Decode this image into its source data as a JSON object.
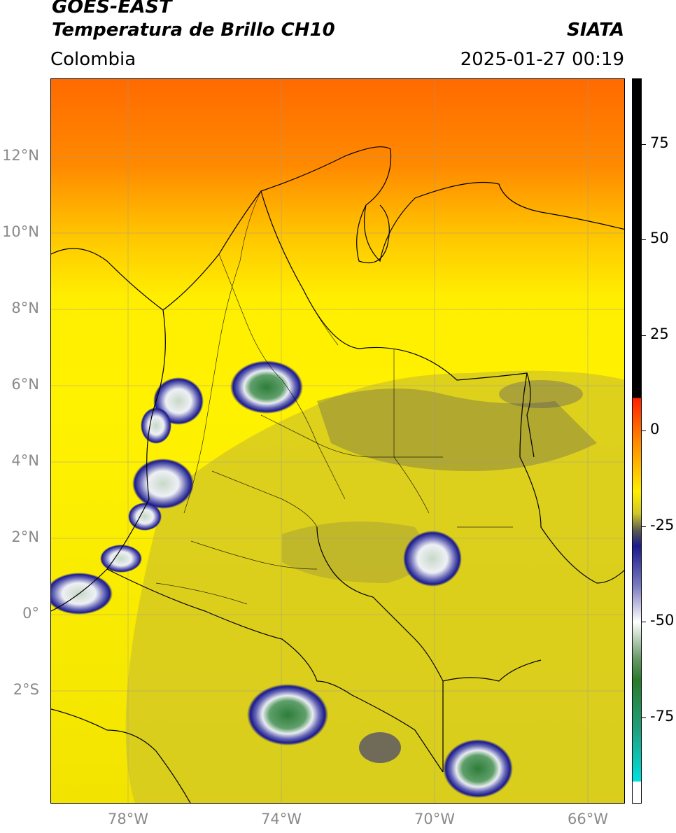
{
  "header": {
    "satellite": "GOES-EAST",
    "product": "Temperatura de Brillo CH10",
    "agency": "SIATA",
    "region": "Colombia",
    "datetime": "2025-01-27 00:19"
  },
  "map": {
    "lat_labels": [
      "12°N",
      "10°N",
      "8°N",
      "6°N",
      "4°N",
      "2°N",
      "0°",
      "2°S"
    ],
    "lon_labels": [
      "78°W",
      "74°W",
      "70°W",
      "66°W"
    ],
    "background_colors": {
      "warm_top": "#ff7a00",
      "mid": "#ffe000",
      "land": "#d6cc1e",
      "cold_cloud": "#1a1a8c",
      "cold_core": "#3f8c4a"
    }
  },
  "colorbar": {
    "tick_labels": [
      "75",
      "50",
      "25",
      "0",
      "-25",
      "-50",
      "-75"
    ]
  }
}
